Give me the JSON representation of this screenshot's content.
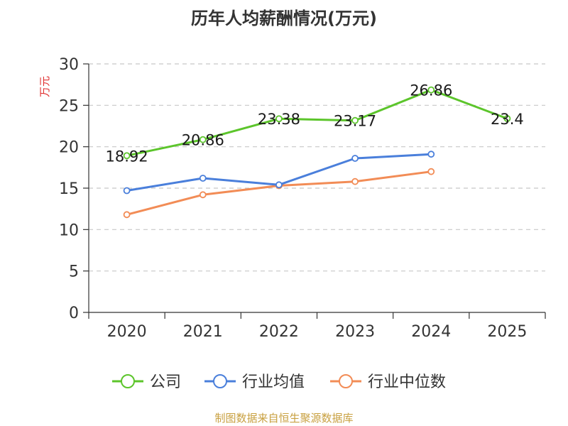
{
  "chart_data": {
    "type": "line",
    "title": "历年人均薪酬情况(万元)",
    "ylabel": "万元",
    "xlabel": "",
    "categories": [
      "2020",
      "2021",
      "2022",
      "2023",
      "2024",
      "2025"
    ],
    "ylim": [
      0,
      30
    ],
    "yticks": [
      "0",
      "5",
      "10",
      "15",
      "20",
      "25",
      "30"
    ],
    "grid": true,
    "legend_position": "bottom",
    "series": [
      {
        "name": "公司",
        "color": "#5cc52b",
        "values": [
          18.92,
          20.86,
          23.38,
          23.17,
          26.86,
          23.4
        ],
        "labels": [
          "18.92",
          "20.86",
          "23.38",
          "23.17",
          "26.86",
          "23.4"
        ]
      },
      {
        "name": "行业均值",
        "color": "#4a7fdb",
        "values": [
          14.7,
          16.2,
          15.4,
          18.6,
          19.1,
          null
        ]
      },
      {
        "name": "行业中位数",
        "color": "#f28c56",
        "values": [
          11.8,
          14.2,
          15.3,
          15.8,
          17.0,
          null
        ]
      }
    ],
    "source": "制图数据来自恒生聚源数据库"
  }
}
